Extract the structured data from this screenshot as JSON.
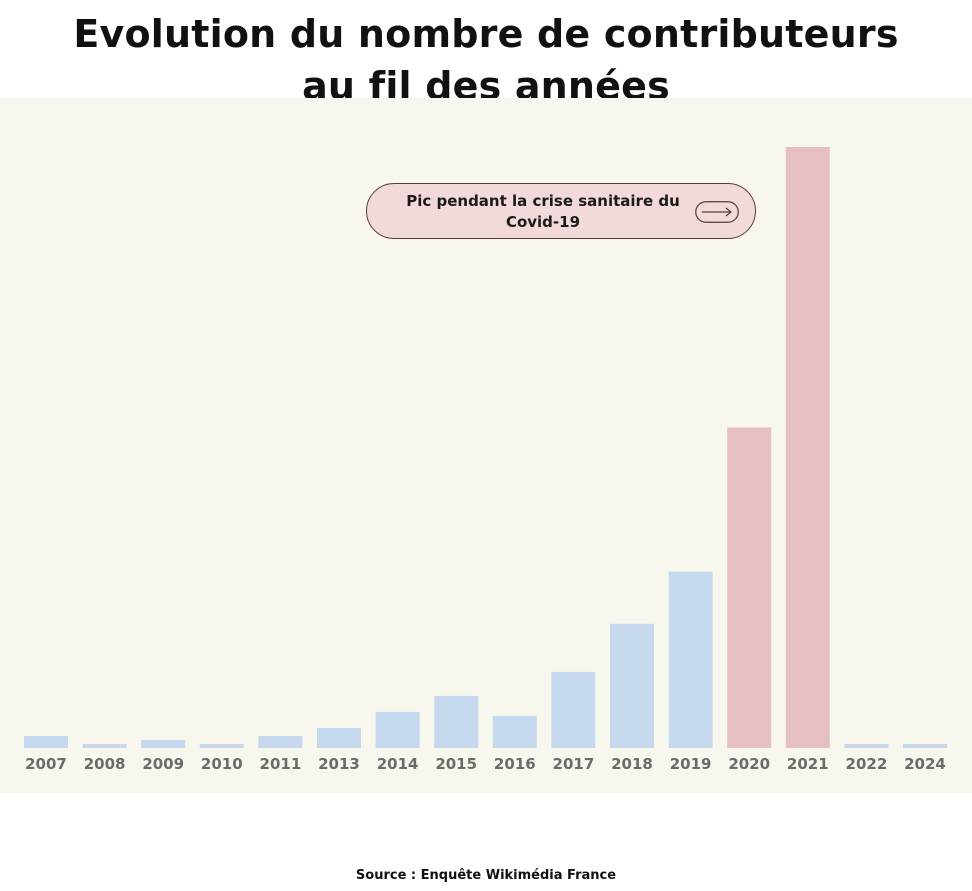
{
  "title": {
    "line1": "Evolution du nombre de contributeurs",
    "line2": "au fil des années"
  },
  "annotation": {
    "text": "Pic pendant la crise sanitaire du Covid-19",
    "icon": "arrow-right-icon"
  },
  "source": "Source : Enquête Wikimédia France",
  "colors": {
    "background": "#f8f7ee",
    "bar_default": "#c6d8ee",
    "bar_highlight": "#e6c0c1",
    "callout_fill": "#f2d9da",
    "callout_border": "#5a3a3a",
    "tick_text": "#6b6b6b"
  },
  "chart_data": {
    "type": "bar",
    "title": "Evolution du nombre de contributeurs au fil des années",
    "xlabel": "",
    "ylabel": "",
    "grid": false,
    "y_axis_shown": false,
    "categories": [
      "2007",
      "2008",
      "2009",
      "2010",
      "2011",
      "2013",
      "2014",
      "2015",
      "2016",
      "2017",
      "2018",
      "2019",
      "2020",
      "2021",
      "2022",
      "2024"
    ],
    "values": [
      3,
      1,
      2,
      1,
      3,
      5,
      9,
      13,
      8,
      19,
      31,
      44,
      80,
      150,
      1,
      1
    ],
    "highlighted": [
      "2020",
      "2021"
    ],
    "ylim": [
      0,
      150
    ]
  }
}
